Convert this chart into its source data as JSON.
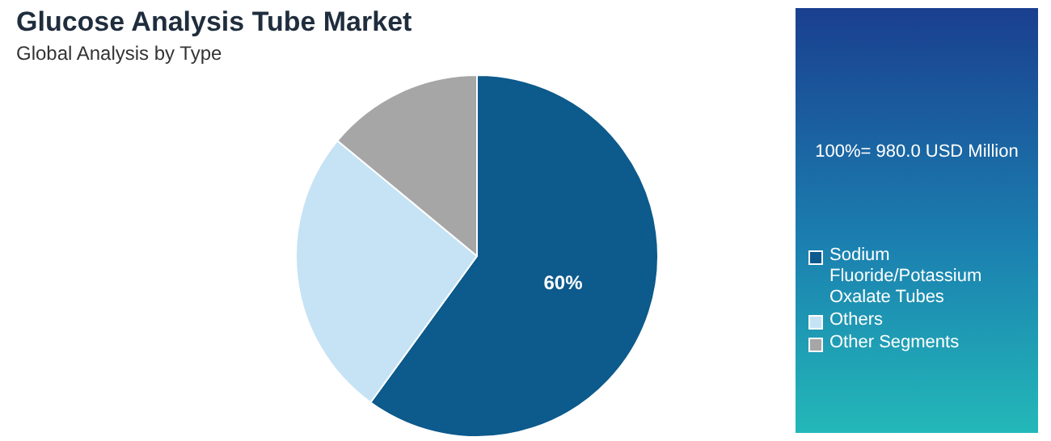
{
  "chart_data": {
    "type": "pie",
    "title": "Glucose Analysis Tube Market",
    "subtitle": "Global Analysis by Type",
    "categories": [
      "Sodium Fluoride/Potassium Oxalate Tubes",
      "Others",
      "Other Segments"
    ],
    "values": [
      60,
      26,
      14
    ],
    "colors": [
      "#0d5a8c",
      "#c5e3f5",
      "#a6a6a6"
    ],
    "value_labels": [
      "60%",
      null,
      null
    ],
    "annotations": [
      "100%= 980.0 USD Million"
    ],
    "legend": "right"
  }
}
